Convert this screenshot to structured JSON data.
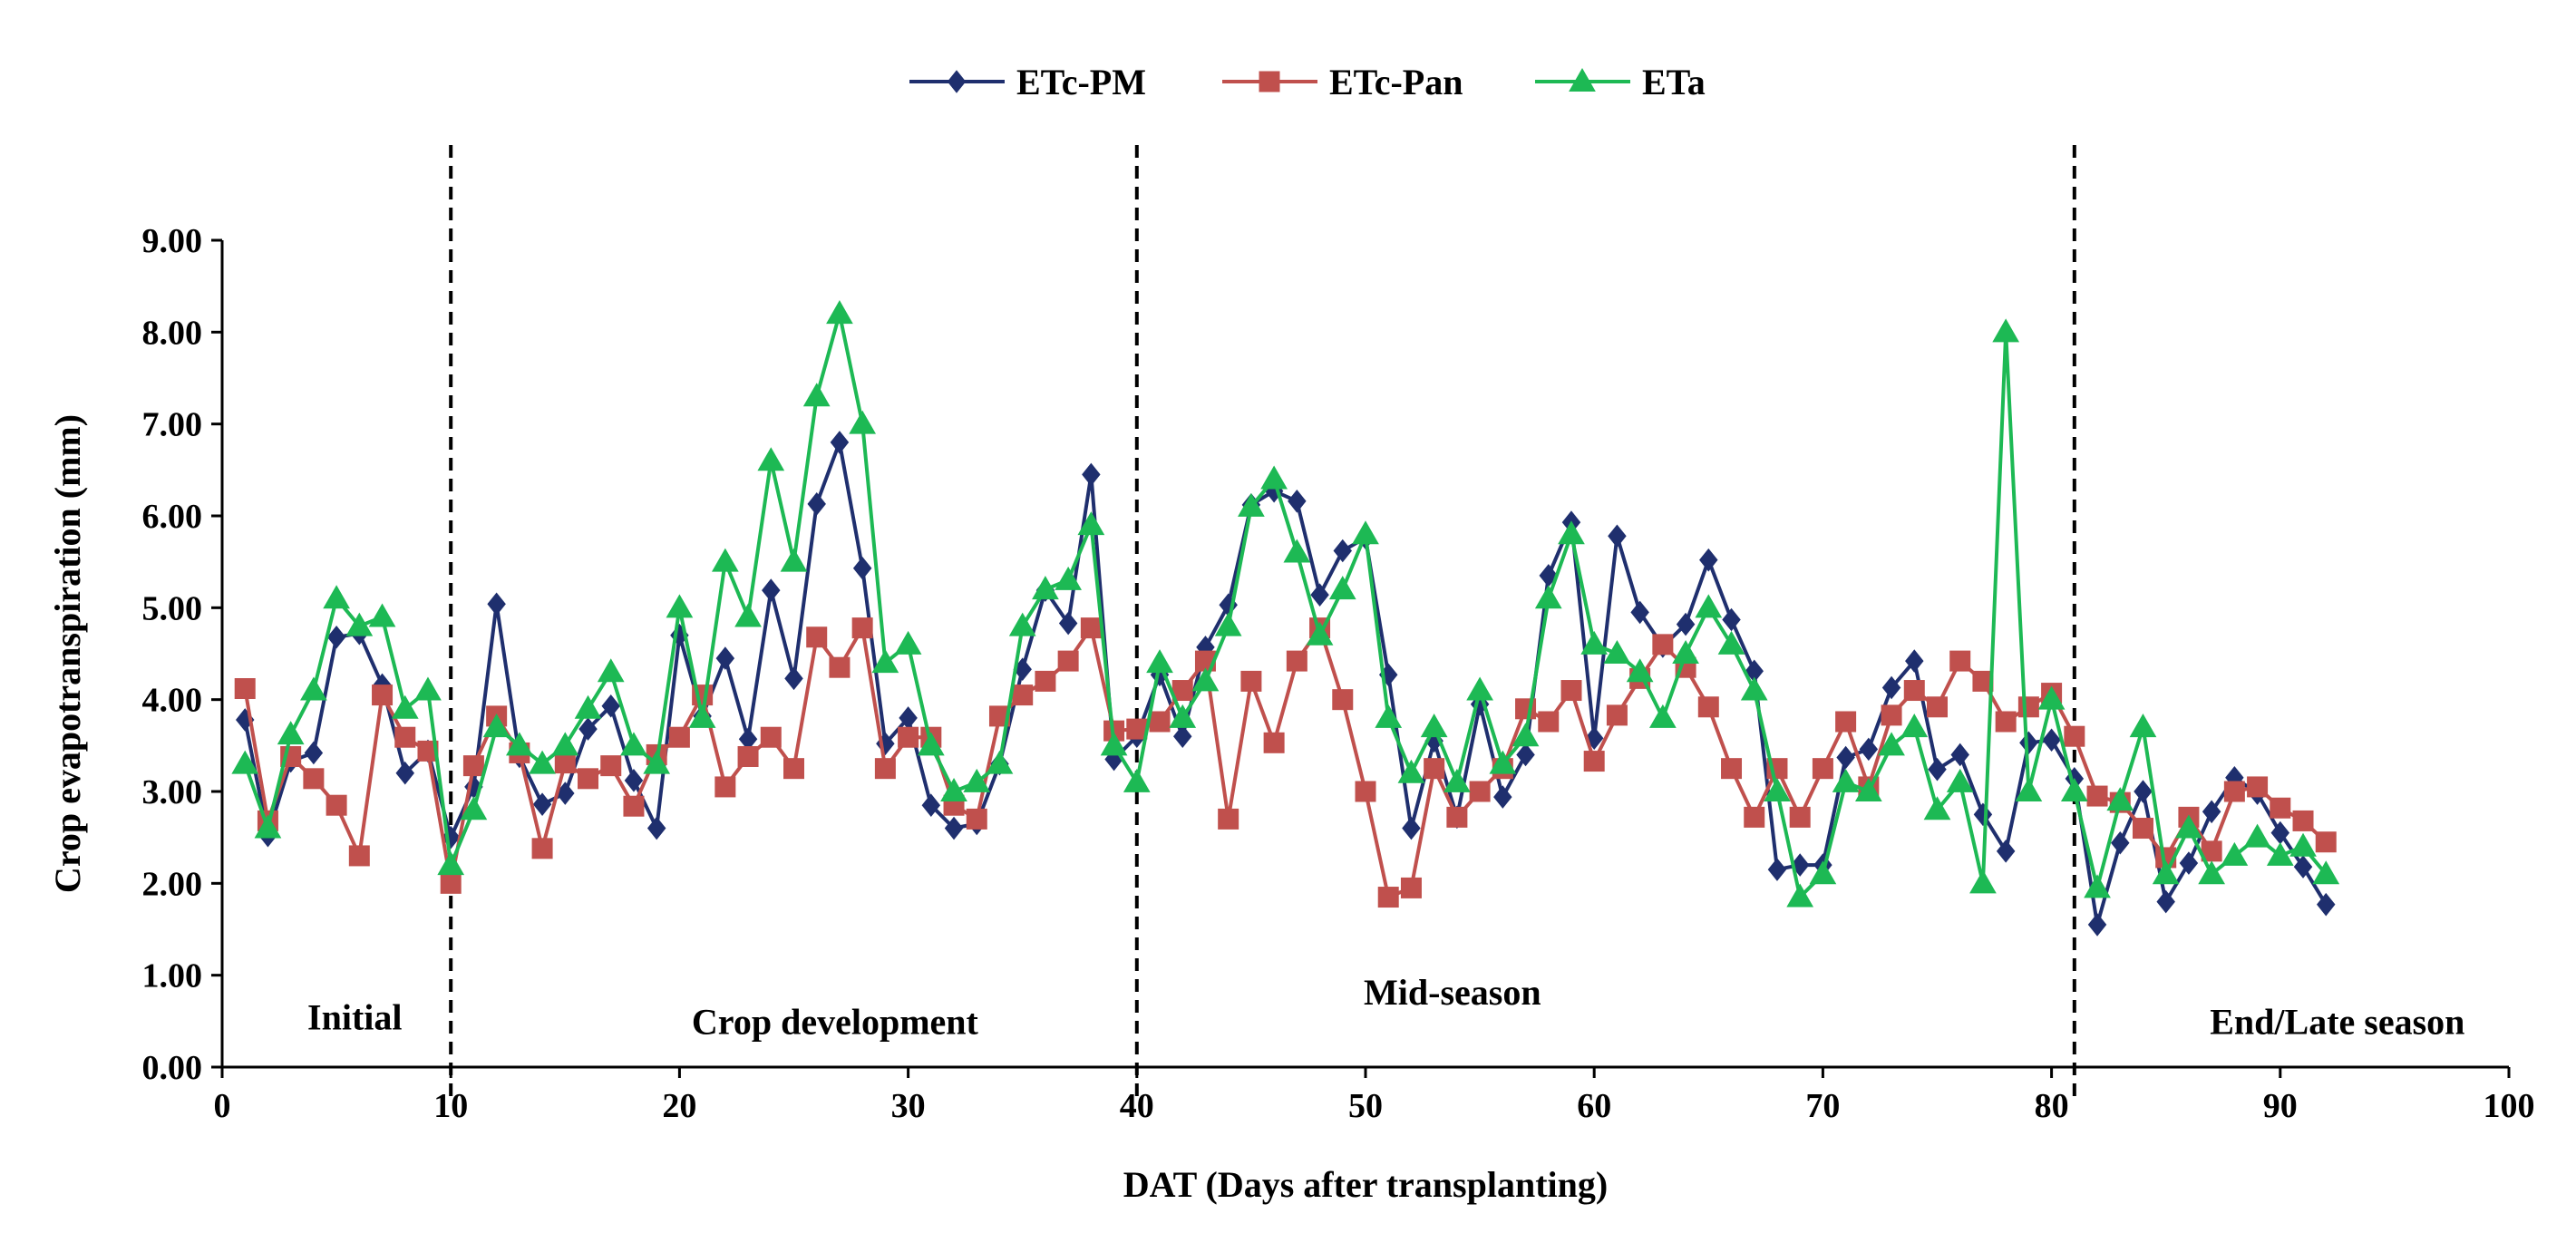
{
  "chart_data": {
    "type": "line",
    "title": "",
    "xlabel": "DAT (Days after transplanting)",
    "ylabel": "Crop evapotranspiration (mm)",
    "xlim": [
      0,
      100
    ],
    "ylim": [
      0,
      9
    ],
    "x_ticks": [
      0,
      10,
      20,
      30,
      40,
      50,
      60,
      70,
      80,
      90,
      100
    ],
    "y_ticks": [
      0,
      1,
      2,
      3,
      4,
      5,
      6,
      7,
      8,
      9
    ],
    "x_tick_labels": [
      "0",
      "10",
      "20",
      "30",
      "40",
      "50",
      "60",
      "70",
      "80",
      "90",
      "100"
    ],
    "y_tick_labels": [
      "0.00",
      "1.00",
      "2.00",
      "3.00",
      "4.00",
      "5.00",
      "6.00",
      "7.00",
      "8.00",
      "9.00"
    ],
    "grid": false,
    "legend_position": "top-center",
    "stage_boundaries": [
      10,
      40,
      81
    ],
    "stages": [
      {
        "label": "Initial",
        "x": 5.8,
        "y": 0.55
      },
      {
        "label": "Crop  development",
        "x": 26.8,
        "y": 0.5
      },
      {
        "label": "Mid-season",
        "x": 53.8,
        "y": 0.82
      },
      {
        "label": "End/Late season",
        "x": 92.5,
        "y": 0.5
      }
    ],
    "series": [
      {
        "name": "ETc-PM",
        "color": "#1f2f6e",
        "marker": "diamond",
        "x": [
          1,
          2,
          3,
          4,
          5,
          6,
          7,
          8,
          9,
          10,
          11,
          12,
          13,
          14,
          15,
          16,
          17,
          18,
          19,
          20,
          21,
          22,
          23,
          24,
          25,
          26,
          27,
          28,
          29,
          30,
          31,
          32,
          33,
          34,
          35,
          36,
          37,
          38,
          39,
          40,
          41,
          42,
          43,
          44,
          45,
          46,
          47,
          48,
          49,
          50,
          51,
          52,
          53,
          54,
          55,
          56,
          57,
          58,
          59,
          60,
          61,
          62,
          63,
          64,
          65,
          66,
          67,
          68,
          69,
          70,
          71,
          72,
          73,
          74,
          75,
          76,
          77,
          78,
          79,
          80,
          81,
          82,
          83,
          84,
          85,
          86,
          87,
          88,
          89,
          90,
          91,
          92
        ],
        "values": [
          3.78,
          2.52,
          3.33,
          3.42,
          4.68,
          4.72,
          4.16,
          3.2,
          3.44,
          2.5,
          3.05,
          5.04,
          3.38,
          2.86,
          2.98,
          3.68,
          3.93,
          3.12,
          2.6,
          4.7,
          3.82,
          4.45,
          3.57,
          5.19,
          4.23,
          6.13,
          6.8,
          5.43,
          3.52,
          3.8,
          2.85,
          2.6,
          2.65,
          3.3,
          4.33,
          5.19,
          4.83,
          6.45,
          3.35,
          3.6,
          4.27,
          3.6,
          4.57,
          5.03,
          6.12,
          6.27,
          6.16,
          5.14,
          5.62,
          5.76,
          4.27,
          2.6,
          3.55,
          2.72,
          3.95,
          2.94,
          3.4,
          5.35,
          5.93,
          3.58,
          5.78,
          4.95,
          4.58,
          4.82,
          5.52,
          4.87,
          4.31,
          2.15,
          2.2,
          2.2,
          3.37,
          3.46,
          4.13,
          4.42,
          3.24,
          3.4,
          2.75,
          2.35,
          3.53,
          3.56,
          3.14,
          1.55,
          2.44,
          3.0,
          1.8,
          2.22,
          2.78,
          3.15,
          2.98,
          2.55,
          2.18,
          1.77
        ]
      },
      {
        "name": "ETc-Pan",
        "color": "#c0504d",
        "marker": "square",
        "x": [
          1,
          2,
          3,
          4,
          5,
          6,
          7,
          8,
          9,
          10,
          11,
          12,
          13,
          14,
          15,
          16,
          17,
          18,
          19,
          20,
          21,
          22,
          23,
          24,
          25,
          26,
          27,
          28,
          29,
          30,
          31,
          32,
          33,
          34,
          35,
          36,
          37,
          38,
          39,
          40,
          41,
          42,
          43,
          44,
          45,
          46,
          47,
          48,
          49,
          50,
          51,
          52,
          53,
          54,
          55,
          56,
          57,
          58,
          59,
          60,
          61,
          62,
          63,
          64,
          65,
          66,
          67,
          68,
          69,
          70,
          71,
          72,
          73,
          74,
          75,
          76,
          77,
          78,
          79,
          80,
          81,
          82,
          83,
          84,
          85,
          86,
          87,
          88,
          89,
          90,
          91,
          92
        ],
        "values": [
          4.12,
          2.68,
          3.38,
          3.14,
          2.85,
          2.3,
          4.05,
          3.59,
          3.44,
          2.0,
          3.28,
          3.82,
          3.42,
          2.38,
          3.31,
          3.14,
          3.28,
          2.84,
          3.4,
          3.59,
          4.05,
          3.05,
          3.38,
          3.59,
          3.25,
          4.68,
          4.35,
          4.78,
          3.25,
          3.59,
          3.59,
          2.85,
          2.7,
          3.82,
          4.05,
          4.2,
          4.42,
          4.78,
          3.66,
          3.68,
          3.76,
          4.1,
          4.42,
          2.7,
          4.2,
          3.53,
          4.42,
          4.78,
          4.0,
          3.0,
          1.85,
          1.95,
          3.25,
          2.72,
          3.0,
          3.25,
          3.9,
          3.76,
          4.1,
          3.33,
          3.83,
          4.23,
          4.6,
          4.35,
          3.92,
          3.25,
          2.72,
          3.25,
          2.72,
          3.25,
          3.76,
          3.05,
          3.83,
          4.1,
          3.92,
          4.42,
          4.2,
          3.76,
          3.92,
          4.07,
          3.6,
          2.95,
          2.88,
          2.6,
          2.28,
          2.72,
          2.35,
          3.0,
          3.05,
          2.82,
          2.68,
          2.45
        ]
      },
      {
        "name": "ETa",
        "color": "#1db954",
        "marker": "triangle",
        "x": [
          1,
          2,
          3,
          4,
          5,
          6,
          7,
          8,
          9,
          10,
          11,
          12,
          13,
          14,
          15,
          16,
          17,
          18,
          19,
          20,
          21,
          22,
          23,
          24,
          25,
          26,
          27,
          28,
          29,
          30,
          31,
          32,
          33,
          34,
          35,
          36,
          37,
          38,
          39,
          40,
          41,
          42,
          43,
          44,
          45,
          46,
          47,
          48,
          49,
          50,
          51,
          52,
          53,
          54,
          55,
          56,
          57,
          58,
          59,
          60,
          61,
          62,
          63,
          64,
          65,
          66,
          67,
          68,
          69,
          70,
          71,
          72,
          73,
          74,
          75,
          76,
          77,
          78,
          79,
          80,
          81,
          82,
          83,
          84,
          85,
          86,
          87,
          88,
          89,
          90,
          91,
          92
        ],
        "values": [
          3.3,
          2.6,
          3.62,
          4.1,
          5.1,
          4.8,
          4.9,
          3.9,
          4.1,
          2.2,
          2.8,
          3.7,
          3.5,
          3.3,
          3.5,
          3.9,
          4.3,
          3.5,
          3.3,
          5.0,
          3.8,
          5.5,
          4.9,
          6.6,
          5.5,
          7.3,
          8.2,
          7.0,
          4.4,
          4.6,
          3.5,
          3.0,
          3.1,
          3.3,
          4.8,
          5.2,
          5.3,
          5.9,
          3.5,
          3.1,
          4.4,
          3.8,
          4.2,
          4.8,
          6.1,
          6.4,
          5.6,
          4.7,
          5.2,
          5.8,
          3.8,
          3.2,
          3.7,
          3.1,
          4.1,
          3.3,
          3.6,
          5.1,
          5.8,
          4.6,
          4.5,
          4.3,
          3.8,
          4.5,
          5.0,
          4.6,
          4.1,
          3.0,
          1.85,
          2.1,
          3.1,
          3.0,
          3.5,
          3.7,
          2.8,
          3.1,
          2.0,
          8.0,
          3.0,
          4.0,
          3.0,
          1.95,
          2.9,
          3.7,
          2.1,
          2.6,
          2.1,
          2.3,
          2.5,
          2.3,
          2.4,
          2.1
        ]
      }
    ]
  }
}
